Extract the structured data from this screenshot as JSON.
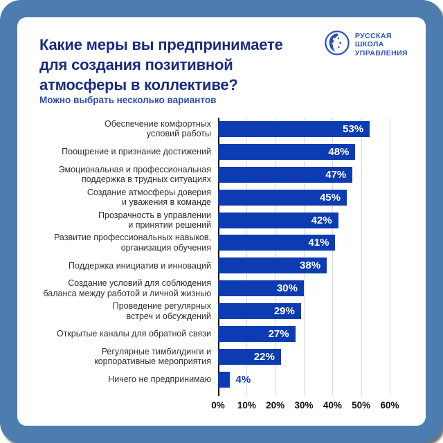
{
  "header": {
    "title": "Какие меры вы предпринимаете\nдля создания позитивной\nатмосферы в коллективе?",
    "subtitle": "Можно выбрать несколько вариантов",
    "logo_text": "РУССКАЯ\nШКОЛА\nУПРАВЛЕНИЯ"
  },
  "colors": {
    "frame": "#4D7DAE",
    "card": "#ffffff",
    "title": "#1A2B80",
    "subtitle": "#2B4EB2",
    "logo": "#2B52B8",
    "bar": "#0D3CB2",
    "gridline": "#DADADA",
    "axis_line": "#0a0a0a",
    "label_text": "#2e2e2e",
    "value_text_inside": "#ffffff",
    "value_text_outside": "#0D3CB2"
  },
  "chart_data": {
    "type": "bar",
    "orientation": "horizontal",
    "title": "Какие меры вы предпринимаете для создания позитивной атмосферы в коллективе?",
    "subtitle": "Можно выбрать несколько вариантов",
    "xlabel": "",
    "ylabel": "",
    "xlim": [
      0,
      60
    ],
    "grid": true,
    "legend": false,
    "value_suffix": "%",
    "x_ticks": [
      "0%",
      "10%",
      "20%",
      "30%",
      "40%",
      "50%",
      "60%"
    ],
    "categories": [
      "Обеспечение комфортных\nусловий работы",
      "Поощрение и признание достижений",
      "Эмоциональная и профессиональная\nподдержка в трудных ситуациях",
      "Создание атмосферы доверия\nи уважения в команде",
      "Прозрачность в управлении\nи принятии решений",
      "Развитие профессиональных навыков,\nорганизация обучения",
      "Поддержка инициатив и инноваций",
      "Создание условий для соблюдения\nбаланса между работой и личной жизнью",
      "Проведение регулярных\nвстреч и обсуждений",
      "Открытые каналы для обратной связи",
      "Регулярные тимбилдинги и\nкорпоративные мероприятия",
      "Ничего не предпринимаю"
    ],
    "values": [
      53,
      48,
      47,
      45,
      42,
      41,
      38,
      30,
      29,
      27,
      22,
      4
    ]
  }
}
